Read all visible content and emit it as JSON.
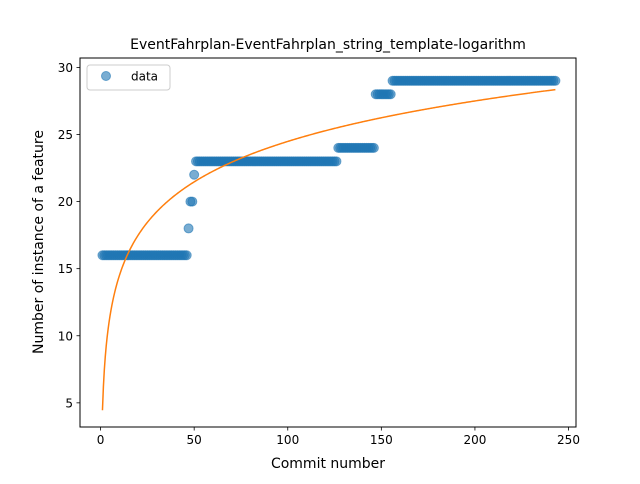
{
  "chart_data": {
    "type": "scatter",
    "title": "EventFahrplan-EventFahrplan_string_template-logarithm",
    "xlabel": "Commit number",
    "ylabel": "Number of instance of a feature",
    "xlim": [
      -11,
      254
    ],
    "ylim": [
      3.2,
      30.7
    ],
    "xticks": [
      0,
      50,
      100,
      150,
      200,
      250
    ],
    "yticks": [
      5,
      10,
      15,
      20,
      25,
      30
    ],
    "grid": false,
    "legend": {
      "position": "top-left",
      "entries": [
        "data"
      ]
    },
    "colors": {
      "data": "#1f77b4",
      "fit": "#ff7f0e"
    },
    "series": [
      {
        "name": "data",
        "kind": "scatter",
        "segments": [
          {
            "x_start": 1,
            "x_end": 46,
            "y": 16
          },
          {
            "x_start": 47,
            "x_end": 47,
            "y": 18
          },
          {
            "x_start": 48,
            "x_end": 49,
            "y": 20
          },
          {
            "x_start": 50,
            "x_end": 50,
            "y": 22
          },
          {
            "x_start": 51,
            "x_end": 126,
            "y": 23
          },
          {
            "x_start": 127,
            "x_end": 146,
            "y": 24
          },
          {
            "x_start": 147,
            "x_end": 155,
            "y": 28
          },
          {
            "x_start": 156,
            "x_end": 243,
            "y": 29
          }
        ]
      },
      {
        "kind": "line",
        "fit": {
          "form": "a + b*ln(x)",
          "a": 4.45,
          "b": 4.35
        },
        "x_range": [
          1,
          243
        ]
      }
    ]
  }
}
